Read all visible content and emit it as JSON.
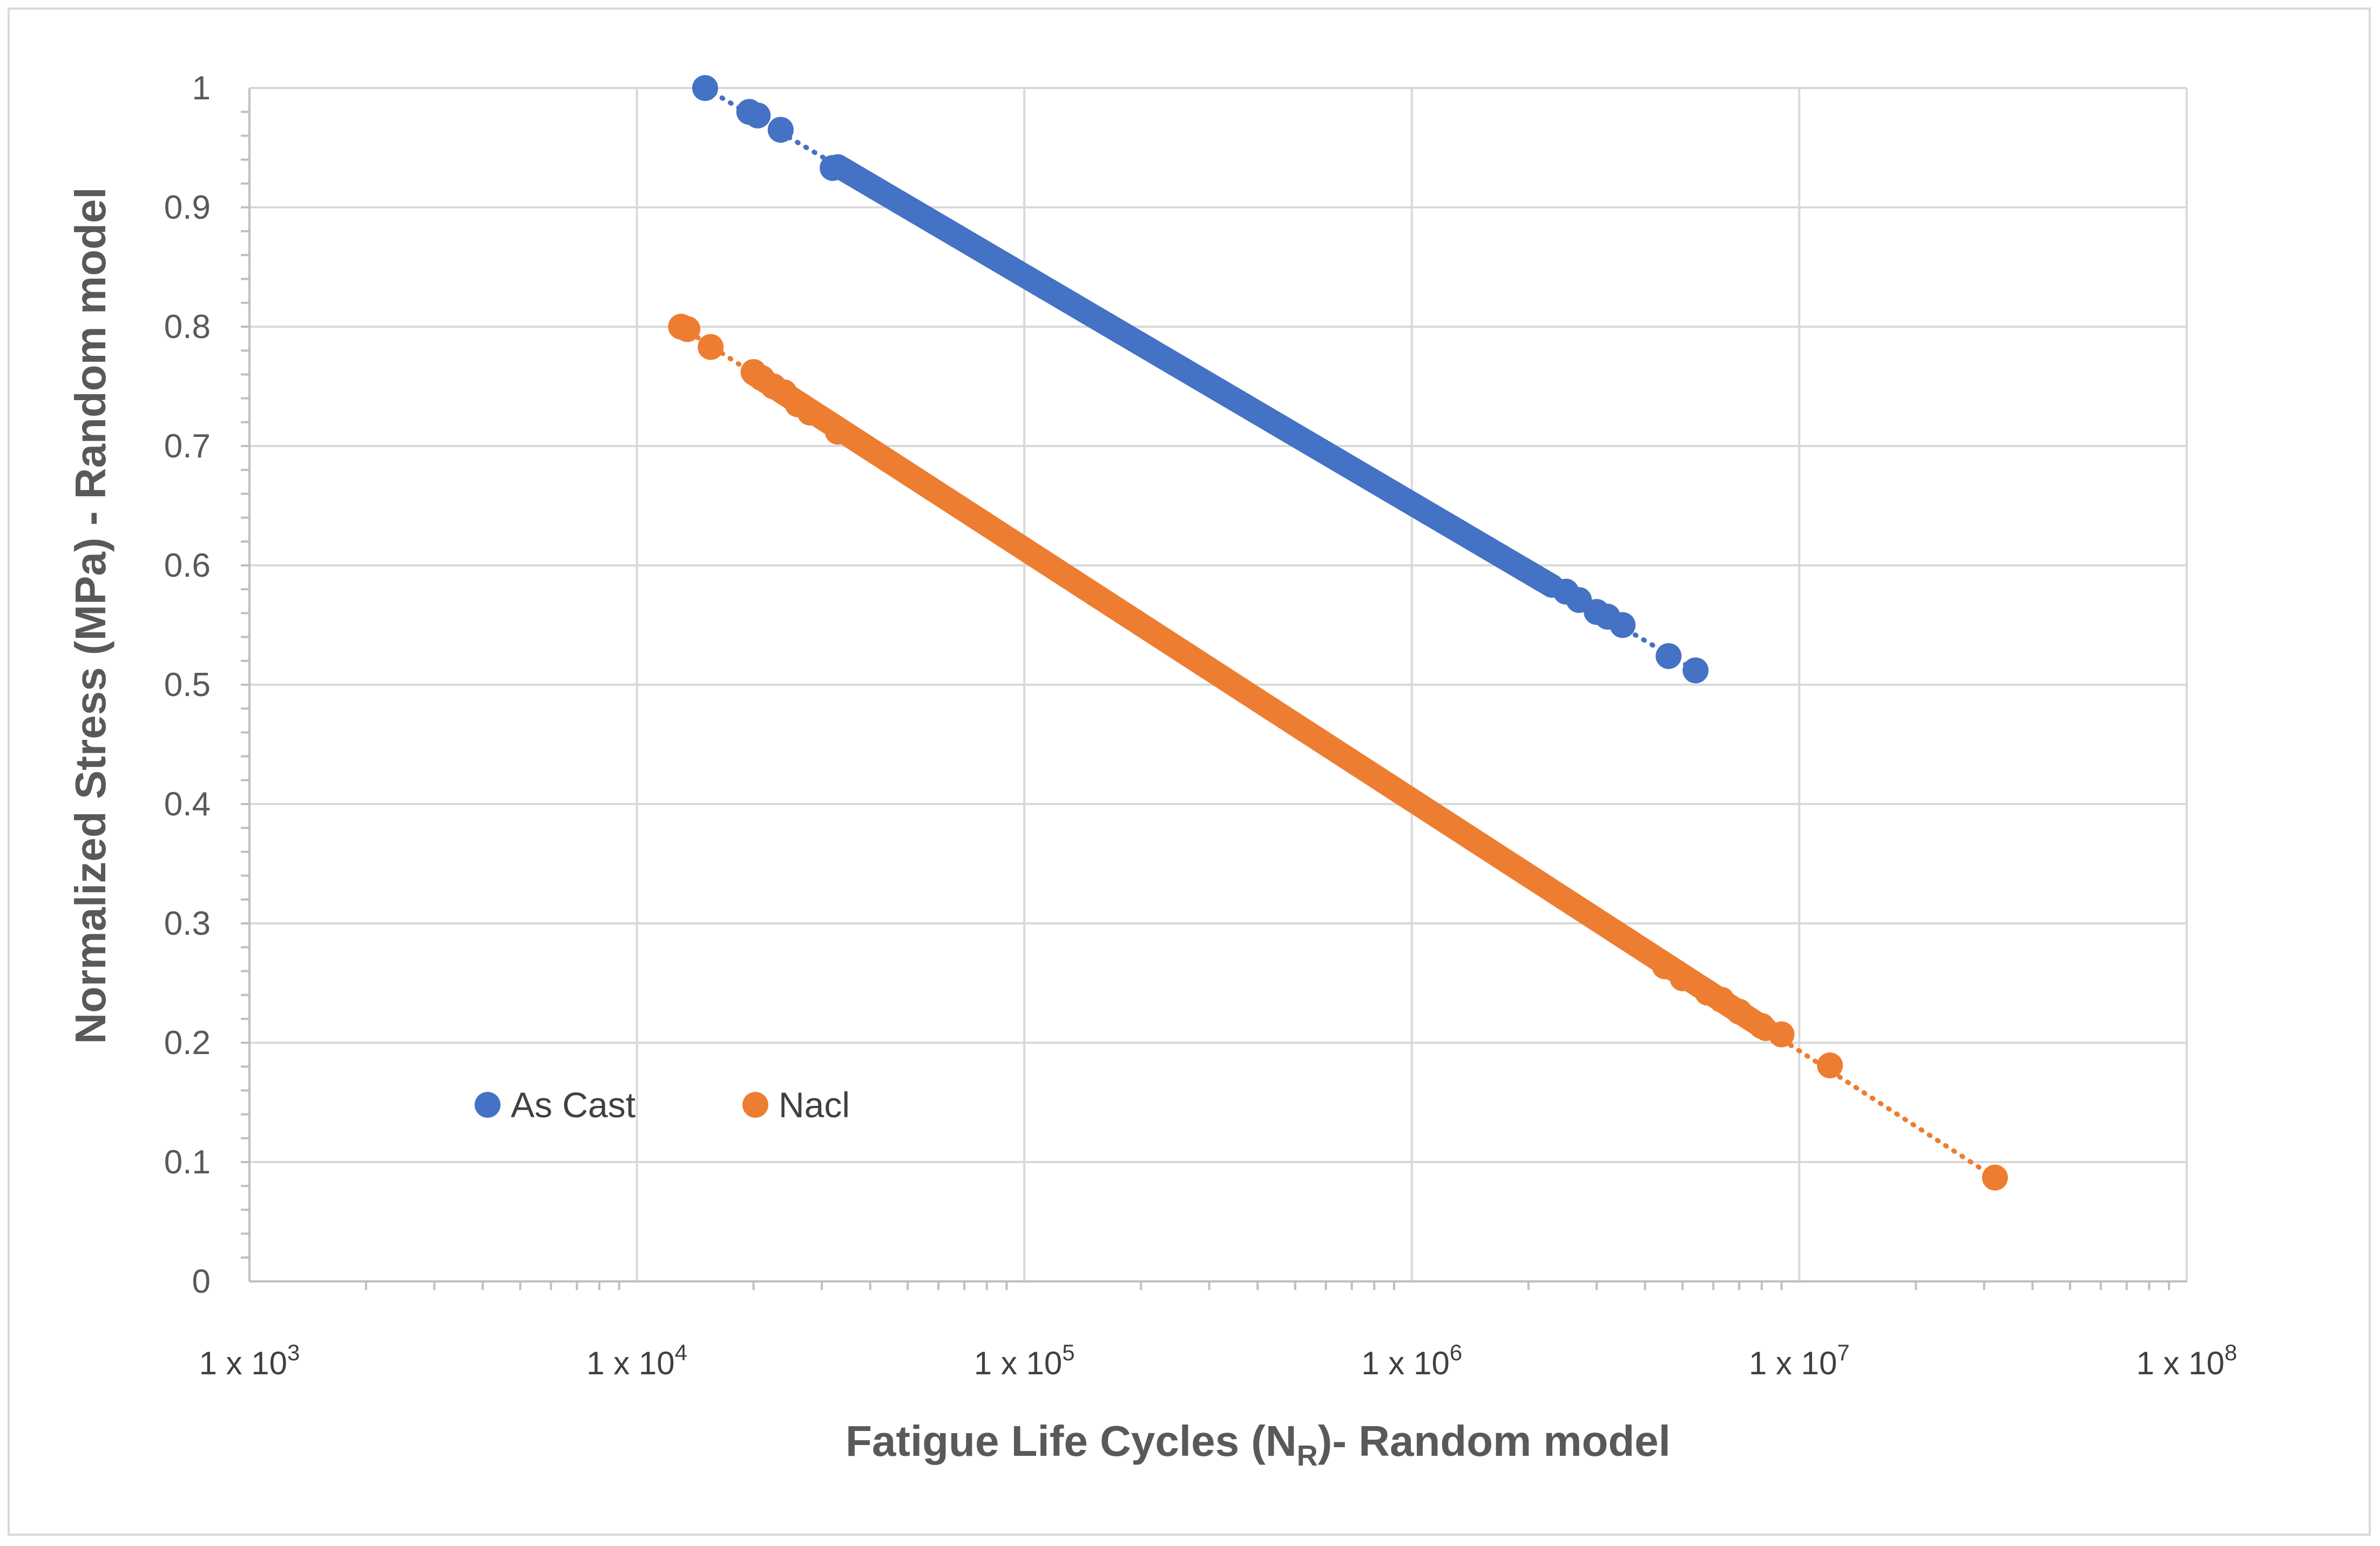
{
  "chart_data": {
    "type": "scatter",
    "title": "",
    "xlabel": "Fatigue Life Cycles (N",
    "xlabel_subscript": "R",
    "xlabel_suffix": ")- Random model",
    "ylabel": "Normalized Stress (MPa) - Random model",
    "x_scale": "log",
    "xlim": [
      1000,
      100000000
    ],
    "ylim": [
      0,
      1
    ],
    "grid": true,
    "legend_position": "lower-left",
    "y_ticks": [
      "0",
      "0.1",
      "0.2",
      "0.3",
      "0.4",
      "0.5",
      "0.6",
      "0.7",
      "0.8",
      "0.9",
      "1"
    ],
    "x_ticks": [
      {
        "value": 1000,
        "base": "1 x 10",
        "exp": "3"
      },
      {
        "value": 10000,
        "base": "1 x 10",
        "exp": "4"
      },
      {
        "value": 100000,
        "base": "1 x 10",
        "exp": "5"
      },
      {
        "value": 1000000,
        "base": "1 x 10",
        "exp": "6"
      },
      {
        "value": 10000000,
        "base": "1 x 10",
        "exp": "7"
      },
      {
        "value": 100000000,
        "base": "1 x 10",
        "exp": "8"
      }
    ],
    "series": [
      {
        "name": "As Cast",
        "color": "#4472c4",
        "trendline": true,
        "x_range": [
          15000,
          5400000
        ],
        "y_range": [
          1.0,
          0.512
        ],
        "dense_segment": [
          33000,
          2300000
        ],
        "points": [
          {
            "x": 15000,
            "y": 1.0
          },
          {
            "x": 19500,
            "y": 0.98
          },
          {
            "x": 20500,
            "y": 0.977
          },
          {
            "x": 23500,
            "y": 0.965
          },
          {
            "x": 32000,
            "y": 0.933
          },
          {
            "x": 2500000,
            "y": 0.578
          },
          {
            "x": 2700000,
            "y": 0.571
          },
          {
            "x": 3000000,
            "y": 0.561
          },
          {
            "x": 3200000,
            "y": 0.557
          },
          {
            "x": 3500000,
            "y": 0.55
          },
          {
            "x": 4600000,
            "y": 0.524
          },
          {
            "x": 5400000,
            "y": 0.512
          }
        ]
      },
      {
        "name": "Nacl",
        "color": "#ed7d31",
        "trendline": true,
        "x_range": [
          13000,
          32000000
        ],
        "y_range": [
          0.8,
          0.087
        ],
        "dense_segment": [
          20000,
          8200000
        ],
        "points": [
          {
            "x": 13000,
            "y": 0.8
          },
          {
            "x": 13500,
            "y": 0.798
          },
          {
            "x": 15500,
            "y": 0.783
          },
          {
            "x": 20000,
            "y": 0.762
          },
          {
            "x": 21000,
            "y": 0.757
          },
          {
            "x": 22500,
            "y": 0.75
          },
          {
            "x": 24000,
            "y": 0.745
          },
          {
            "x": 26000,
            "y": 0.735
          },
          {
            "x": 28000,
            "y": 0.728
          },
          {
            "x": 33000,
            "y": 0.712
          },
          {
            "x": 4500000,
            "y": 0.264
          },
          {
            "x": 5000000,
            "y": 0.254
          },
          {
            "x": 5800000,
            "y": 0.242
          },
          {
            "x": 6300000,
            "y": 0.236
          },
          {
            "x": 7000000,
            "y": 0.226
          },
          {
            "x": 8000000,
            "y": 0.214
          },
          {
            "x": 9000000,
            "y": 0.207
          },
          {
            "x": 12000000,
            "y": 0.181
          },
          {
            "x": 32000000,
            "y": 0.087
          }
        ]
      }
    ]
  }
}
